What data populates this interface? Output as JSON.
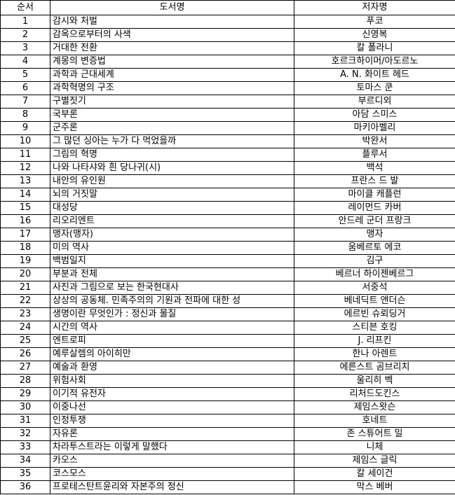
{
  "headers": {
    "order": "순서",
    "title": "도서명",
    "author": "저자명"
  },
  "rows": [
    {
      "order": "1",
      "title": "감시와 처벌",
      "author": "푸코"
    },
    {
      "order": "2",
      "title": "감옥으로부터의 사색",
      "author": "신영복"
    },
    {
      "order": "3",
      "title": "거대한 전환",
      "author": "칼 폴라니"
    },
    {
      "order": "4",
      "title": "계몽의 변증법",
      "author": "호르크하이머/아도르노"
    },
    {
      "order": "5",
      "title": "과학과 근대세계",
      "author": "A. N. 화이트 헤드"
    },
    {
      "order": "6",
      "title": "과학혁명의 구조",
      "author": "토마스 쿤"
    },
    {
      "order": "7",
      "title": "구별짓기",
      "author": "부르디외"
    },
    {
      "order": "8",
      "title": "국부론",
      "author": "아담 스미스"
    },
    {
      "order": "9",
      "title": "군주론",
      "author": "마키아벨리"
    },
    {
      "order": "10",
      "title": "그 많던 싱아는 누가 다 먹었을까",
      "author": "박완서"
    },
    {
      "order": "11",
      "title": "그림의 혁명",
      "author": "플루서"
    },
    {
      "order": "12",
      "title": "나와 나타샤와 흰 당나귀(시)",
      "author": "백석"
    },
    {
      "order": "13",
      "title": "내안의 유인원",
      "author": "프란스 드 발"
    },
    {
      "order": "14",
      "title": "뇌의 거짓말",
      "author": "마이클 캐플런"
    },
    {
      "order": "15",
      "title": "대성당",
      "author": "레이먼드 카버"
    },
    {
      "order": "16",
      "title": "리오리엔트",
      "author": "안드레 군더 프랑크"
    },
    {
      "order": "17",
      "title": "맹자(맹자)",
      "author": "맹자"
    },
    {
      "order": "18",
      "title": "미의 역사",
      "author": "움베르토 에코"
    },
    {
      "order": "19",
      "title": "백범일지",
      "author": "김구"
    },
    {
      "order": "20",
      "title": "부분과 전체",
      "author": "베르너 하이젠베르그"
    },
    {
      "order": "21",
      "title": "사진과 그림으로 보는 한국현대사",
      "author": "서중석"
    },
    {
      "order": "22",
      "title": "상상의 공동체. 민족주의의 기원과 전파에 대한 성",
      "author": "베네딕트 앤더슨"
    },
    {
      "order": "23",
      "title": "생명이란 무엇인가 : 정신과 물질",
      "author": "에르빈 슈뢰딩거"
    },
    {
      "order": "24",
      "title": "시간의 역사",
      "author": "스티븐 호킹"
    },
    {
      "order": "25",
      "title": "엔트로피",
      "author": "J. 리프킨"
    },
    {
      "order": "26",
      "title": "예루살렘의 아이히만",
      "author": "한나 아렌트"
    },
    {
      "order": "27",
      "title": "예술과 환영",
      "author": "에른스트 곰브리치"
    },
    {
      "order": "28",
      "title": "위험사회",
      "author": "울리히 벡"
    },
    {
      "order": "29",
      "title": "이기적 유전자",
      "author": "리처드도킨스"
    },
    {
      "order": "30",
      "title": "이중나선",
      "author": "제임스왓슨"
    },
    {
      "order": "31",
      "title": "인정투쟁",
      "author": "호네트"
    },
    {
      "order": "32",
      "title": "자유론",
      "author": "존 스튜어트 밀"
    },
    {
      "order": "33",
      "title": "차라투스트라는 이렇게 말했다",
      "author": "니체"
    },
    {
      "order": "34",
      "title": "카오스",
      "author": "제임스 글릭"
    },
    {
      "order": "35",
      "title": "코스모스",
      "author": "칼 세이건"
    },
    {
      "order": "36",
      "title": "프로테스탄트윤리와 자본주의 정신",
      "author": "막스 베버"
    }
  ]
}
